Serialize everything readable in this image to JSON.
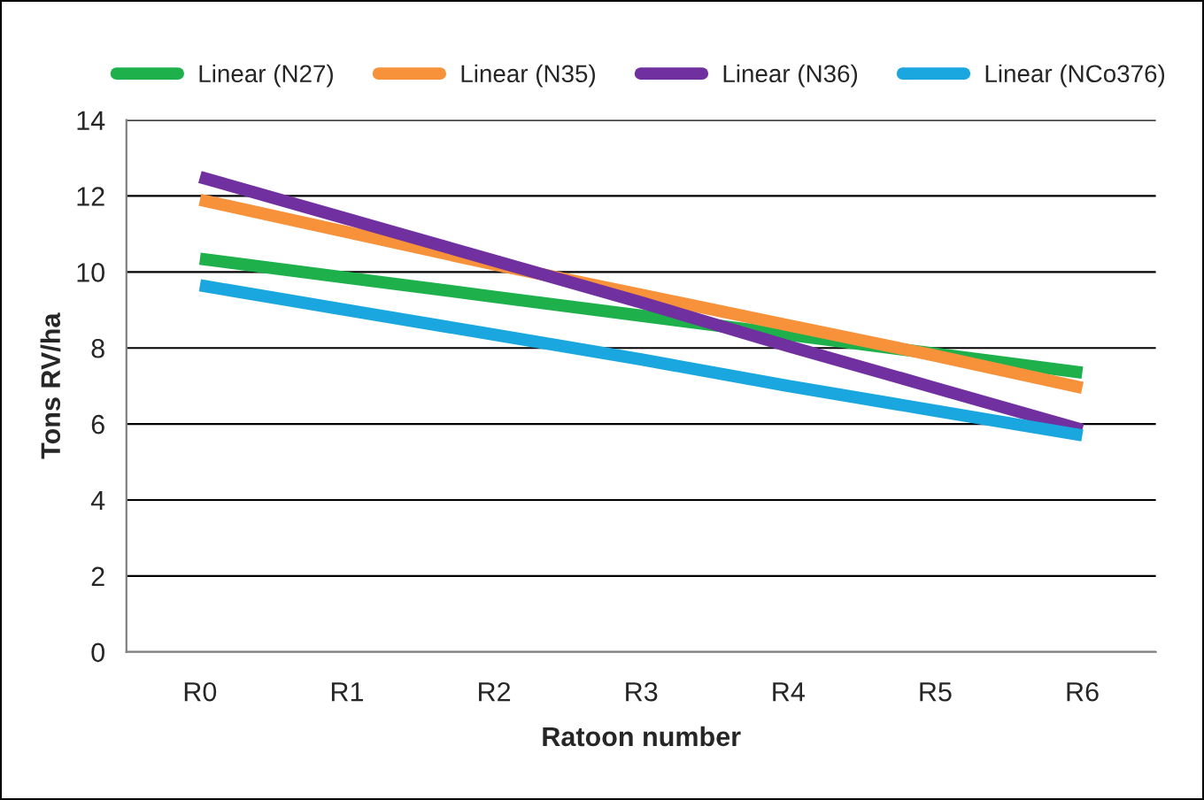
{
  "chart_data": {
    "type": "line",
    "xlabel": "Ratoon number",
    "ylabel": "Tons RV/ha",
    "categories": [
      "R0",
      "R1",
      "R2",
      "R3",
      "R4",
      "R5",
      "R6"
    ],
    "series": [
      {
        "name": "Linear (N27)",
        "color": "#1eb14b",
        "values": [
          10.35,
          9.85,
          9.35,
          8.85,
          8.35,
          7.85,
          7.35
        ]
      },
      {
        "name": "Linear (N35)",
        "color": "#f7923a",
        "values": [
          11.9,
          11.05,
          10.2,
          9.4,
          8.6,
          7.8,
          6.95
        ]
      },
      {
        "name": "Linear (N36)",
        "color": "#7030a0",
        "values": [
          12.5,
          11.4,
          10.3,
          9.2,
          8.05,
          6.95,
          5.85
        ]
      },
      {
        "name": "Linear (NCo376)",
        "color": "#1aa7e0",
        "values": [
          9.65,
          9.0,
          8.35,
          7.7,
          7.0,
          6.35,
          5.7
        ]
      }
    ],
    "ylim": [
      0,
      14
    ],
    "yticks": [
      0,
      2,
      4,
      6,
      8,
      10,
      12,
      14
    ],
    "grid": "y",
    "legend": "top",
    "marker": "none",
    "line_style": "solid"
  }
}
